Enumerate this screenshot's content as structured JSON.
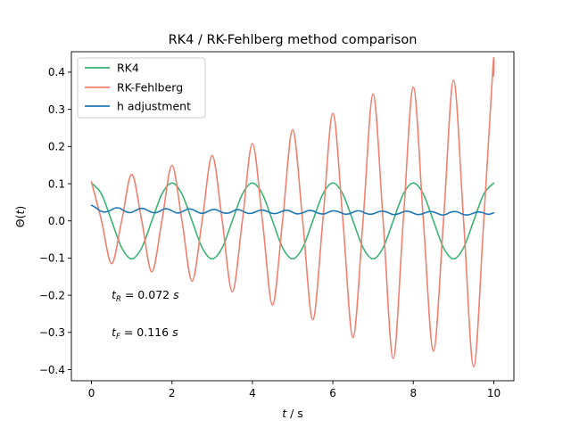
{
  "chart_data": {
    "type": "line",
    "title": "RK4 / RK-Fehlberg method comparison",
    "xlabel_base": "t",
    "xlabel_unit": " / s",
    "ylabel_base": "Θ(",
    "ylabel_var": "t",
    "ylabel_close": ")",
    "xlim": [
      -0.5,
      10.5
    ],
    "ylim": [
      -0.43,
      0.455
    ],
    "xticks": [
      0,
      2,
      4,
      6,
      8,
      10
    ],
    "xtick_labels": [
      "0",
      "2",
      "4",
      "6",
      "8",
      "10"
    ],
    "yticks": [
      -0.4,
      -0.3,
      -0.2,
      -0.1,
      0.0,
      0.1,
      0.2,
      0.3,
      0.4
    ],
    "ytick_labels": [
      "−0.4",
      "−0.3",
      "−0.2",
      "−0.1",
      "0.0",
      "0.1",
      "0.2",
      "0.3",
      "0.4"
    ],
    "grid": false,
    "legend_placement": "upper-left",
    "series": [
      {
        "name": "RK4",
        "color": "#3cb371",
        "x": [
          0.0,
          0.25,
          0.5,
          0.75,
          1.0,
          1.25,
          1.5,
          1.75,
          2.0,
          2.25,
          2.5,
          2.75,
          3.0,
          3.25,
          3.5,
          3.75,
          4.0,
          4.25,
          4.5,
          4.75,
          5.0,
          5.25,
          5.5,
          5.75,
          6.0,
          6.25,
          6.5,
          6.75,
          7.0,
          7.25,
          7.5,
          7.75,
          8.0,
          8.25,
          8.5,
          8.75,
          9.0,
          9.25,
          9.5,
          9.75,
          10.0
        ],
        "y": [
          0.102,
          0.072,
          0.0,
          -0.072,
          -0.102,
          -0.072,
          0.0,
          0.072,
          0.102,
          0.072,
          0.0,
          -0.072,
          -0.102,
          -0.072,
          0.0,
          0.072,
          0.102,
          0.072,
          0.0,
          -0.072,
          -0.102,
          -0.072,
          0.0,
          0.072,
          0.102,
          0.072,
          0.0,
          -0.072,
          -0.102,
          -0.072,
          0.0,
          0.072,
          0.102,
          0.072,
          0.0,
          -0.072,
          -0.102,
          -0.072,
          0.0,
          0.072,
          0.102
        ]
      },
      {
        "name": "RK-Fehlberg",
        "color": "#f08070",
        "x": [
          0.0,
          0.25,
          0.5,
          0.75,
          1.0,
          1.25,
          1.5,
          1.75,
          2.0,
          2.25,
          2.5,
          2.75,
          3.0,
          3.25,
          3.5,
          3.75,
          4.0,
          4.25,
          4.5,
          4.75,
          5.0,
          5.25,
          5.5,
          5.75,
          6.0,
          6.25,
          6.5,
          6.75,
          7.0,
          7.25,
          7.5,
          7.75,
          8.0,
          8.25,
          8.5,
          8.75,
          9.0,
          9.25,
          9.5,
          9.75,
          9.98,
          10.0
        ],
        "y": [
          0.105,
          0.0,
          -0.115,
          0.0,
          0.125,
          0.0,
          -0.137,
          0.0,
          0.149,
          0.0,
          -0.162,
          0.0,
          0.176,
          0.0,
          -0.191,
          0.0,
          0.208,
          0.0,
          -0.226,
          0.0,
          0.245,
          0.0,
          -0.266,
          0.0,
          0.289,
          0.0,
          -0.314,
          0.0,
          0.341,
          0.0,
          -0.37,
          0.0,
          0.36,
          0.0,
          -0.35,
          0.0,
          0.378,
          0.0,
          -0.392,
          0.0,
          0.415,
          0.39
        ]
      },
      {
        "name": "h adjustment",
        "color": "#1f77b4",
        "x": [
          0.0,
          0.1,
          0.2,
          0.3,
          0.4,
          0.5,
          0.6,
          0.7,
          0.8,
          0.9,
          1.0,
          1.1,
          1.2,
          1.3,
          1.4,
          1.5,
          1.6,
          1.7,
          1.8,
          1.9,
          2.0,
          2.1,
          2.2,
          2.3,
          2.4,
          2.5,
          2.6,
          2.7,
          2.8,
          2.9,
          3.0,
          3.1,
          3.2,
          3.3,
          3.4,
          3.5,
          3.6,
          3.7,
          3.8,
          3.9,
          4.0,
          4.1,
          4.2,
          4.3,
          4.4,
          4.5,
          4.6,
          4.7,
          4.8,
          4.9,
          5.0,
          5.1,
          5.2,
          5.3,
          5.4,
          5.5,
          5.6,
          5.7,
          5.8,
          5.9,
          6.0,
          6.1,
          6.2,
          6.3,
          6.4,
          6.5,
          6.6,
          6.7,
          6.8,
          6.9,
          7.0,
          7.1,
          7.2,
          7.3,
          7.4,
          7.5,
          7.6,
          7.7,
          7.8,
          7.9,
          8.0,
          8.1,
          8.2,
          8.3,
          8.4,
          8.5,
          8.6,
          8.7,
          8.8,
          8.9,
          9.0,
          9.1,
          9.2,
          9.3,
          9.4,
          9.5,
          9.6,
          9.7,
          9.8,
          9.9,
          10.0
        ],
        "y": [
          0.042,
          0.036,
          0.028,
          0.024,
          0.025,
          0.03,
          0.035,
          0.034,
          0.028,
          0.023,
          0.023,
          0.028,
          0.033,
          0.033,
          0.028,
          0.023,
          0.022,
          0.026,
          0.032,
          0.032,
          0.027,
          0.022,
          0.022,
          0.027,
          0.032,
          0.031,
          0.026,
          0.021,
          0.021,
          0.026,
          0.03,
          0.03,
          0.025,
          0.021,
          0.021,
          0.025,
          0.03,
          0.029,
          0.024,
          0.02,
          0.021,
          0.025,
          0.029,
          0.028,
          0.024,
          0.02,
          0.02,
          0.024,
          0.028,
          0.028,
          0.023,
          0.019,
          0.02,
          0.024,
          0.028,
          0.027,
          0.022,
          0.019,
          0.019,
          0.024,
          0.027,
          0.026,
          0.022,
          0.018,
          0.019,
          0.023,
          0.027,
          0.026,
          0.021,
          0.018,
          0.019,
          0.023,
          0.026,
          0.025,
          0.021,
          0.017,
          0.018,
          0.022,
          0.026,
          0.025,
          0.021,
          0.017,
          0.018,
          0.022,
          0.025,
          0.024,
          0.02,
          0.016,
          0.017,
          0.022,
          0.025,
          0.024,
          0.019,
          0.016,
          0.017,
          0.021,
          0.024,
          0.023,
          0.019,
          0.018,
          0.022
        ]
      }
    ],
    "annotations": [
      {
        "sym": "t",
        "sub": "R",
        "text": " = 0.072  ",
        "unit": "s",
        "x": 0.5,
        "y": -0.2
      },
      {
        "sym": "t",
        "sub": "F",
        "text": " = 0.116  ",
        "unit": "s",
        "x": 0.5,
        "y": -0.3
      }
    ]
  }
}
